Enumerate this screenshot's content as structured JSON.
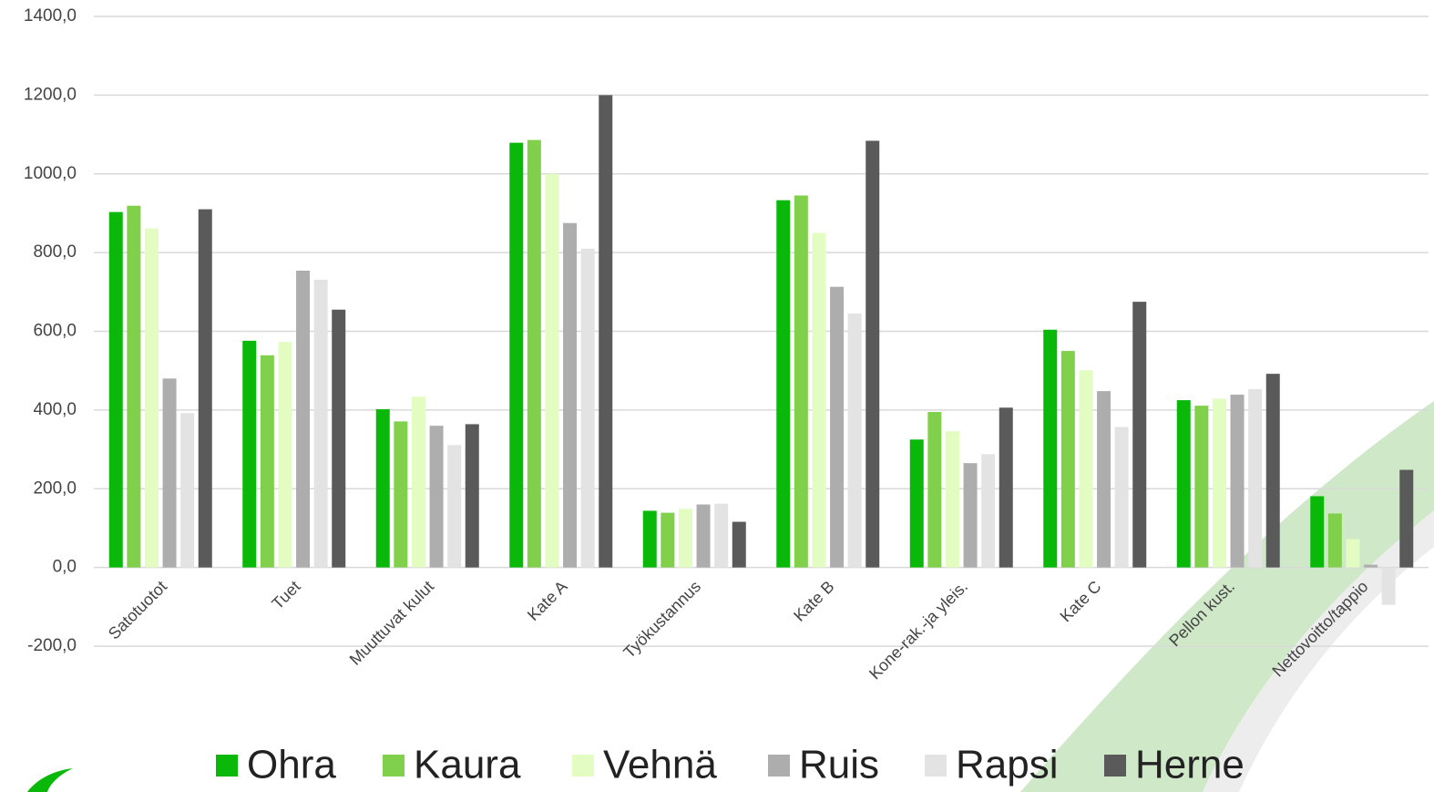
{
  "chart_data": {
    "type": "bar",
    "categories": [
      "Satotuotot",
      "Tuet",
      "Muuttuvat kulut",
      "Kate A",
      "Työkustannus",
      "Kate B",
      "Kone-rak.-ja yleis.",
      "Kate C",
      "Pellon kust.",
      "Nettovoitto/tappio"
    ],
    "series": [
      {
        "name": "Ohra",
        "color": "#0ab80a",
        "values": [
          903,
          576,
          402,
          1079,
          144,
          933,
          325,
          604,
          425,
          181
        ]
      },
      {
        "name": "Kaura",
        "color": "#80d04c",
        "values": [
          919,
          539,
          371,
          1086,
          139,
          945,
          395,
          550,
          411,
          137
        ]
      },
      {
        "name": "Vehnä",
        "color": "#e3fcc2",
        "values": [
          861,
          573,
          434,
          1000,
          149,
          850,
          346,
          501,
          429,
          72
        ]
      },
      {
        "name": "Ruis",
        "color": "#adadad",
        "values": [
          480,
          754,
          360,
          875,
          160,
          713,
          265,
          448,
          439,
          7
        ]
      },
      {
        "name": "Rapsi",
        "color": "#e3e3e3",
        "values": [
          392,
          731,
          311,
          810,
          162,
          645,
          288,
          357,
          453,
          -95
        ]
      },
      {
        "name": "Herne",
        "color": "#5a5a5a",
        "values": [
          910,
          655,
          364,
          1200,
          116,
          1084,
          406,
          675,
          492,
          248
        ]
      }
    ],
    "ylim": [
      -200,
      1400
    ],
    "yticks": [
      {
        "value": -200,
        "label": "-200,0"
      },
      {
        "value": 0,
        "label": "0,0"
      },
      {
        "value": 200,
        "label": "200,0"
      },
      {
        "value": 400,
        "label": "400,0"
      },
      {
        "value": 600,
        "label": "600,0"
      },
      {
        "value": 800,
        "label": "800,0"
      },
      {
        "value": 1000,
        "label": "1000,0"
      },
      {
        "value": 1200,
        "label": "1200,0"
      },
      {
        "value": 1400,
        "label": "1400,0"
      }
    ],
    "grid": true
  }
}
